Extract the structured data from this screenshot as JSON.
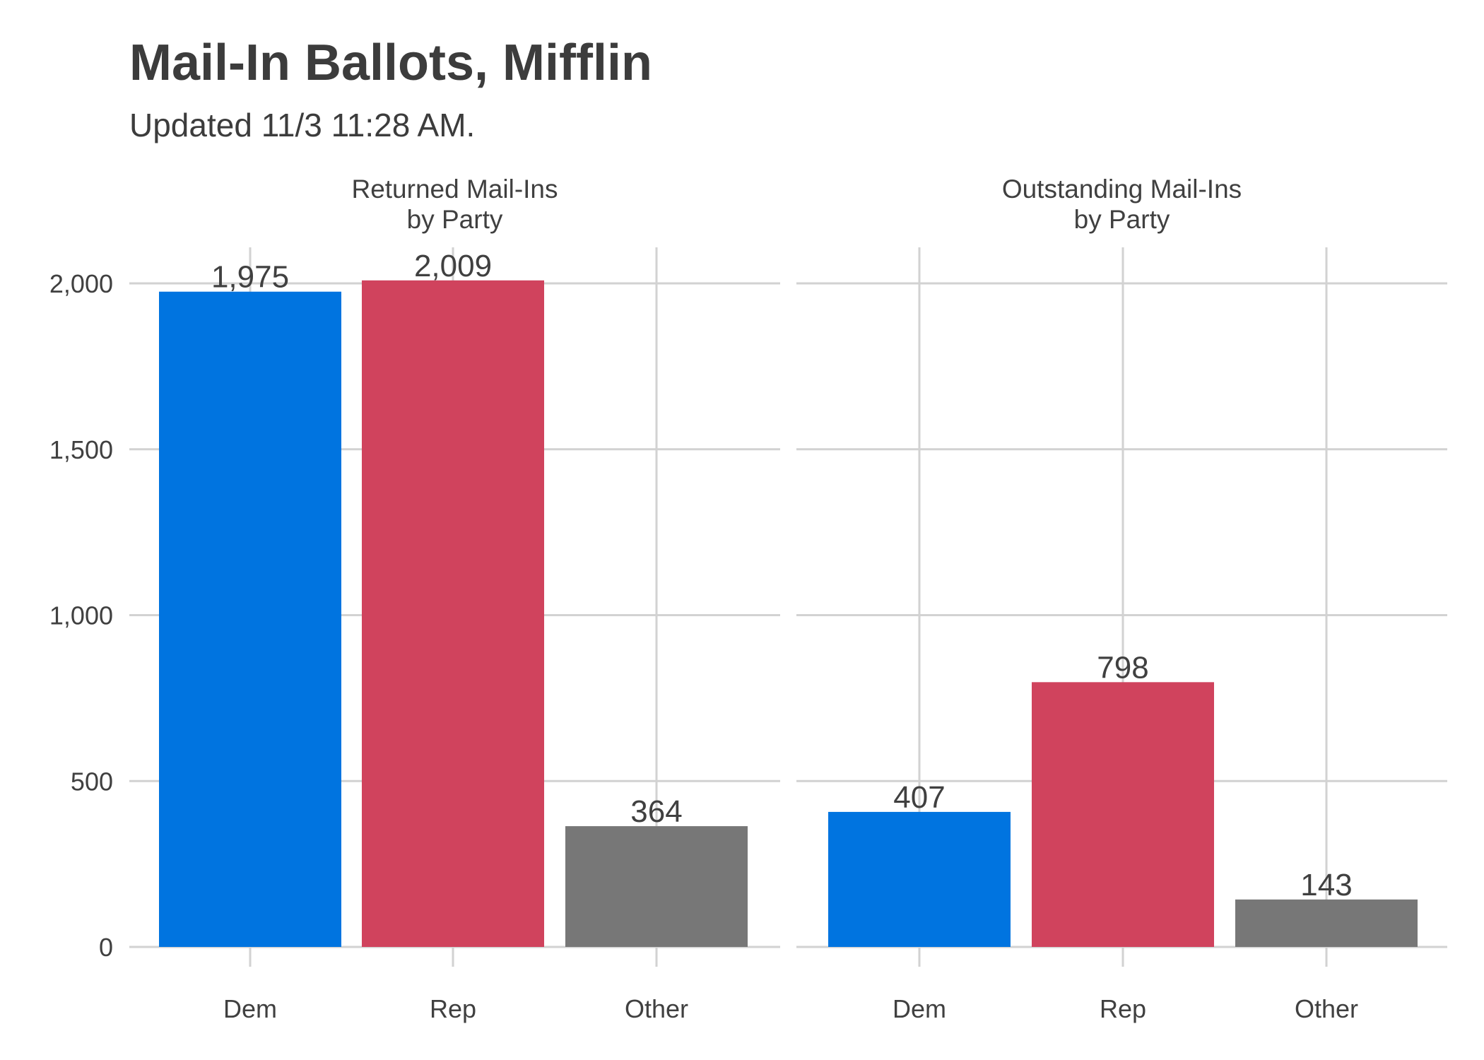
{
  "chart_data": {
    "type": "bar",
    "title": "Mail-In Ballots, Mifflin",
    "subtitle": "Updated 11/3 11:28 AM.",
    "xlabel": "",
    "ylabel": "",
    "ylim": [
      0,
      2100
    ],
    "yticks": [
      0,
      500,
      1000,
      1500,
      2000
    ],
    "ytick_labels": [
      "0",
      "500",
      "1,000",
      "1,500",
      "2,000"
    ],
    "grid": true,
    "legend": "none",
    "categories": [
      "Dem",
      "Rep",
      "Other"
    ],
    "colors": {
      "Dem": "#0074e0",
      "Rep": "#d0435d",
      "Other": "#777777"
    },
    "facets": [
      {
        "title_lines": [
          "Returned Mail-Ins",
          "by Party"
        ],
        "values": [
          1975,
          2009,
          364
        ],
        "value_labels": [
          "1,975",
          "2,009",
          "364"
        ]
      },
      {
        "title_lines": [
          "Outstanding Mail-Ins",
          "by Party"
        ],
        "values": [
          407,
          798,
          143
        ],
        "value_labels": [
          "407",
          "798",
          "143"
        ]
      }
    ]
  }
}
